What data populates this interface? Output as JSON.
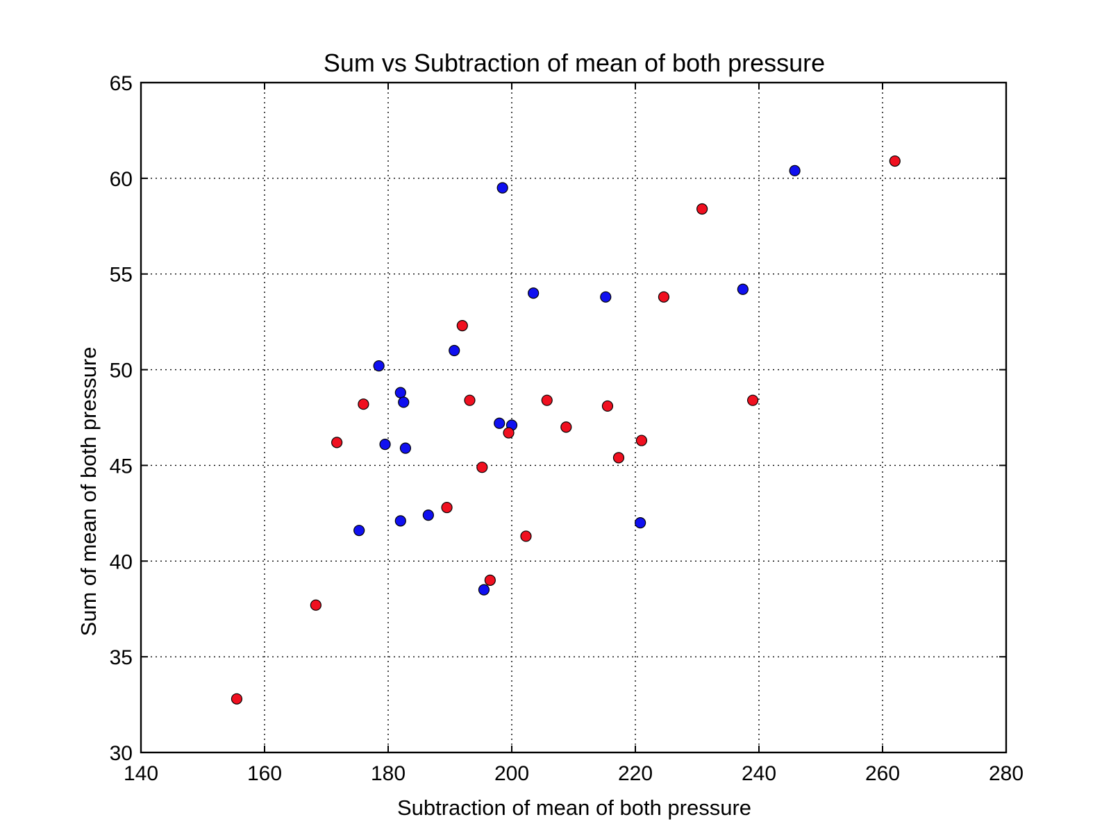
{
  "chart_data": {
    "type": "scatter",
    "title": "Sum vs Subtraction of mean of both pressure",
    "xlabel": "Subtraction of mean of both pressure",
    "ylabel": "Sum of mean of both pressure",
    "xlim": [
      140,
      280
    ],
    "ylim": [
      30,
      65
    ],
    "xticks": [
      140,
      160,
      180,
      200,
      220,
      240,
      260,
      280
    ],
    "yticks": [
      30,
      35,
      40,
      45,
      50,
      55,
      60,
      65
    ],
    "xtick_labels": [
      "140",
      "160",
      "180",
      "200",
      "220",
      "240",
      "260",
      "280"
    ],
    "ytick_labels": [
      "30",
      "35",
      "40",
      "45",
      "50",
      "55",
      "60",
      "65"
    ],
    "grid": true,
    "legend": null,
    "series": [
      {
        "name": "blue",
        "color": "#1010f0",
        "points": [
          [
            198.5,
            59.5
          ],
          [
            245.8,
            60.4
          ],
          [
            203.5,
            54.0
          ],
          [
            215.2,
            53.8
          ],
          [
            237.4,
            54.2
          ],
          [
            190.7,
            51.0
          ],
          [
            178.5,
            50.2
          ],
          [
            182.0,
            48.8
          ],
          [
            182.5,
            48.3
          ],
          [
            198.0,
            47.2
          ],
          [
            200.0,
            47.1
          ],
          [
            179.5,
            46.1
          ],
          [
            182.8,
            45.9
          ],
          [
            175.3,
            41.6
          ],
          [
            182.0,
            42.1
          ],
          [
            186.5,
            42.4
          ],
          [
            220.8,
            42.0
          ],
          [
            195.5,
            38.5
          ]
        ]
      },
      {
        "name": "red",
        "color": "#f01020",
        "points": [
          [
            262.0,
            60.9
          ],
          [
            230.8,
            58.4
          ],
          [
            224.6,
            53.8
          ],
          [
            192.0,
            52.3
          ],
          [
            176.0,
            48.2
          ],
          [
            193.2,
            48.4
          ],
          [
            205.7,
            48.4
          ],
          [
            215.5,
            48.1
          ],
          [
            239.0,
            48.4
          ],
          [
            208.8,
            47.0
          ],
          [
            199.5,
            46.7
          ],
          [
            171.7,
            46.2
          ],
          [
            221.0,
            46.3
          ],
          [
            195.2,
            44.9
          ],
          [
            217.3,
            45.4
          ],
          [
            189.5,
            42.8
          ],
          [
            202.3,
            41.3
          ],
          [
            196.5,
            39.0
          ],
          [
            168.3,
            37.7
          ],
          [
            155.5,
            32.8
          ]
        ]
      }
    ]
  }
}
